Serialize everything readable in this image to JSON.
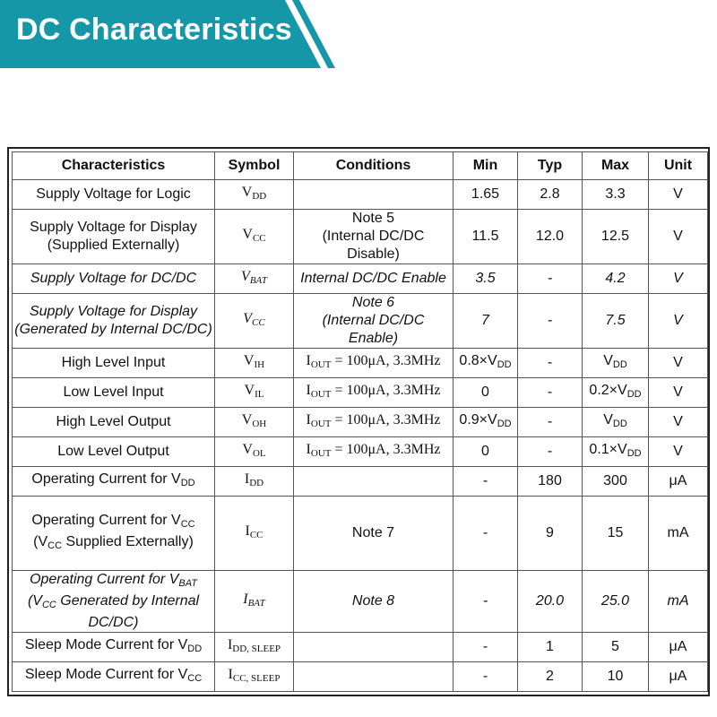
{
  "header": {
    "title": "DC Characteristics",
    "colors": {
      "banner": "#1597a8",
      "stripe": "#1597a8",
      "text": "#ffffff"
    }
  },
  "table": {
    "columns": [
      "Characteristics",
      "Symbol",
      "Conditions",
      "Min",
      "Typ",
      "Max",
      "Unit"
    ],
    "rows": [
      {
        "char": [
          "Supply Voltage for Logic"
        ],
        "sym": {
          "main": "V",
          "sub": "DD"
        },
        "cond": [
          ""
        ],
        "min": "1.65",
        "typ": "2.8",
        "max": "3.3",
        "unit": "V",
        "italic": false
      },
      {
        "char": [
          "Supply Voltage for Display",
          "(Supplied Externally)"
        ],
        "sym": {
          "main": "V",
          "sub": "CC"
        },
        "cond": [
          "Note 5",
          "(Internal DC/DC Disable)"
        ],
        "min": "11.5",
        "typ": "12.0",
        "max": "12.5",
        "unit": "V",
        "italic": false
      },
      {
        "char": [
          "Supply Voltage for DC/DC"
        ],
        "sym": {
          "main": "V",
          "sub": "BAT"
        },
        "cond": [
          "Internal DC/DC Enable"
        ],
        "min": "3.5",
        "typ": "-",
        "max": "4.2",
        "unit": "V",
        "italic": true
      },
      {
        "char": [
          "Supply Voltage for Display",
          "(Generated by Internal DC/DC)"
        ],
        "sym": {
          "main": "V",
          "sub": "CC"
        },
        "cond": [
          "Note 6",
          "(Internal DC/DC Enable)"
        ],
        "min": "7",
        "typ": "-",
        "max": "7.5",
        "unit": "V",
        "italic": true
      },
      {
        "char": [
          "High Level Input"
        ],
        "sym": {
          "main": "V",
          "sub": "IH"
        },
        "cond_rich": {
          "pre": "I",
          "sub": "OUT",
          "post": " = 100μA, 3.3MHz"
        },
        "min_rich": {
          "pre": "0.8×V",
          "sub": "DD"
        },
        "typ": "-",
        "max_rich": {
          "pre": "V",
          "sub": "DD"
        },
        "unit": "V",
        "italic": false
      },
      {
        "char": [
          "Low Level Input"
        ],
        "sym": {
          "main": "V",
          "sub": "IL"
        },
        "cond_rich": {
          "pre": "I",
          "sub": "OUT",
          "post": " = 100μA, 3.3MHz"
        },
        "min": "0",
        "typ": "-",
        "max_rich": {
          "pre": "0.2×V",
          "sub": "DD"
        },
        "unit": "V",
        "italic": false
      },
      {
        "char": [
          "High Level Output"
        ],
        "sym": {
          "main": "V",
          "sub": "OH"
        },
        "cond_rich": {
          "pre": "I",
          "sub": "OUT",
          "post": " = 100μA, 3.3MHz"
        },
        "min_rich": {
          "pre": "0.9×V",
          "sub": "DD"
        },
        "typ": "-",
        "max_rich": {
          "pre": "V",
          "sub": "DD"
        },
        "unit": "V",
        "italic": false
      },
      {
        "char": [
          "Low Level Output"
        ],
        "sym": {
          "main": "V",
          "sub": "OL"
        },
        "cond_rich": {
          "pre": "I",
          "sub": "OUT",
          "post": " = 100μA, 3.3MHz"
        },
        "min": "0",
        "typ": "-",
        "max_rich": {
          "pre": "0.1×V",
          "sub": "DD"
        },
        "unit": "V",
        "italic": false
      },
      {
        "char_rich": [
          {
            "pre": "Operating Current for V",
            "sub": "DD",
            "post": ""
          }
        ],
        "sym": {
          "main": "I",
          "sub": "DD"
        },
        "cond": [
          ""
        ],
        "min": "-",
        "typ": "180",
        "max": "300",
        "unit": "μA",
        "italic": false
      },
      {
        "char_rich": [
          {
            "pre": "Operating Current for V",
            "sub": "CC",
            "post": ""
          },
          {
            "pre": "(V",
            "sub": "CC",
            "post": " Supplied Externally)"
          }
        ],
        "sym": {
          "main": "I",
          "sub": "CC"
        },
        "cond": [
          "Note 7"
        ],
        "min": "-",
        "typ": "9",
        "max": "15",
        "unit": "mA",
        "italic": false
      },
      {
        "char_rich": [
          {
            "pre": "Operating Current for V",
            "sub": "BAT",
            "post": ""
          },
          {
            "pre": "(V",
            "sub": "CC",
            "post": " Generated by Internal DC/DC)"
          }
        ],
        "sym": {
          "main": "I",
          "sub": "BAT"
        },
        "cond": [
          "Note 8"
        ],
        "min": "-",
        "typ": "20.0",
        "max": "25.0",
        "unit": "mA",
        "italic": true
      },
      {
        "char_rich": [
          {
            "pre": "Sleep Mode Current for V",
            "sub": "DD",
            "post": ""
          }
        ],
        "sym": {
          "main": "I",
          "sub": "DD, SLEEP"
        },
        "cond": [
          ""
        ],
        "min": "-",
        "typ": "1",
        "max": "5",
        "unit": "μA",
        "italic": false
      },
      {
        "char_rich": [
          {
            "pre": "Sleep Mode Current for V",
            "sub": "CC",
            "post": ""
          }
        ],
        "sym": {
          "main": "I",
          "sub": "CC, SLEEP"
        },
        "cond": [
          ""
        ],
        "min": "-",
        "typ": "2",
        "max": "10",
        "unit": "μA",
        "italic": false
      }
    ]
  }
}
